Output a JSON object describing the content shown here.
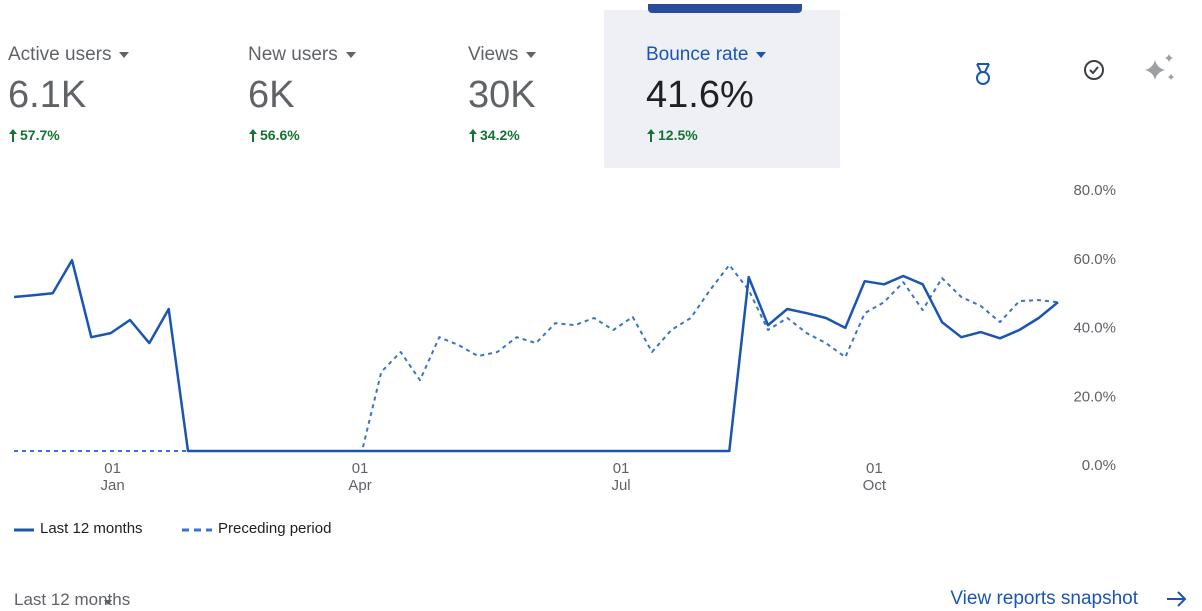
{
  "metrics": [
    {
      "label": "Active users",
      "value": "6.1K",
      "change": "57.7%"
    },
    {
      "label": "New users",
      "value": "6K",
      "change": "56.6%"
    },
    {
      "label": "Views",
      "value": "30K",
      "change": "34.2%"
    },
    {
      "label": "Bounce rate",
      "value": "41.6%",
      "change": "12.5%"
    }
  ],
  "chart_data": {
    "type": "line",
    "x": [
      0,
      1,
      2,
      3,
      4,
      5,
      6,
      7,
      8,
      9,
      10,
      11,
      12,
      13,
      14,
      15,
      16,
      17,
      18,
      19,
      20,
      21,
      22,
      23,
      24,
      25,
      26,
      27,
      28,
      29,
      30,
      31,
      32,
      33,
      34,
      35,
      36,
      37,
      38,
      39,
      40,
      41,
      42,
      43,
      44,
      45,
      46,
      47,
      48,
      49,
      50,
      51,
      52,
      53,
      54
    ],
    "xlim": [
      0,
      54
    ],
    "xticks": [
      {
        "value": 5.1,
        "label": "01 Jan"
      },
      {
        "value": 17.9,
        "label": "01 Apr"
      },
      {
        "value": 31.4,
        "label": "01 Jul"
      },
      {
        "value": 44.5,
        "label": "01 Oct"
      }
    ],
    "ylim": [
      0,
      80
    ],
    "yticks": [
      {
        "value": 0,
        "label": "0.0%"
      },
      {
        "value": 20,
        "label": "20.0%"
      },
      {
        "value": 40,
        "label": "40.0%"
      },
      {
        "value": 60,
        "label": "60.0%"
      },
      {
        "value": 80,
        "label": "80.0%"
      }
    ],
    "series": [
      {
        "name": "Last 12 months",
        "color": "#1a56b0",
        "dashed": false,
        "values": [
          44.8,
          45.3,
          45.9,
          55.5,
          33.1,
          34.3,
          38.1,
          31.4,
          41.3,
          0,
          0,
          0,
          0,
          0,
          0,
          0,
          0,
          0,
          0,
          0,
          0,
          0,
          0,
          0,
          0,
          0,
          0,
          0,
          0,
          0,
          0,
          0,
          0,
          0,
          0,
          0,
          0,
          0,
          50.6,
          36.6,
          41.3,
          40.1,
          38.7,
          35.8,
          49.4,
          48.5,
          50.9,
          48.5,
          37.5,
          33.1,
          34.6,
          32.8,
          35.2,
          38.7,
          43.3
        ]
      },
      {
        "name": "Preceding period",
        "color": "#3b73c8",
        "dashed": true,
        "values": [
          0,
          0,
          0,
          0,
          0,
          0,
          0,
          0,
          0,
          0,
          0,
          0,
          0,
          0,
          0,
          0,
          0,
          0,
          0,
          23,
          28.8,
          20.6,
          33.1,
          30.8,
          27.6,
          28.8,
          33.1,
          31.4,
          37.2,
          36.6,
          38.7,
          35.2,
          39,
          28.8,
          35.2,
          38.7,
          46.8,
          54.1,
          46.8,
          35.2,
          38.7,
          34.3,
          31.4,
          27.3,
          40.1,
          43.3,
          49.1,
          41,
          50.3,
          44.8,
          42.2,
          37.5,
          43.6,
          43.9,
          43.3
        ]
      }
    ]
  },
  "footer": {
    "range": "Last 12 months",
    "link": "View reports snapshot"
  }
}
